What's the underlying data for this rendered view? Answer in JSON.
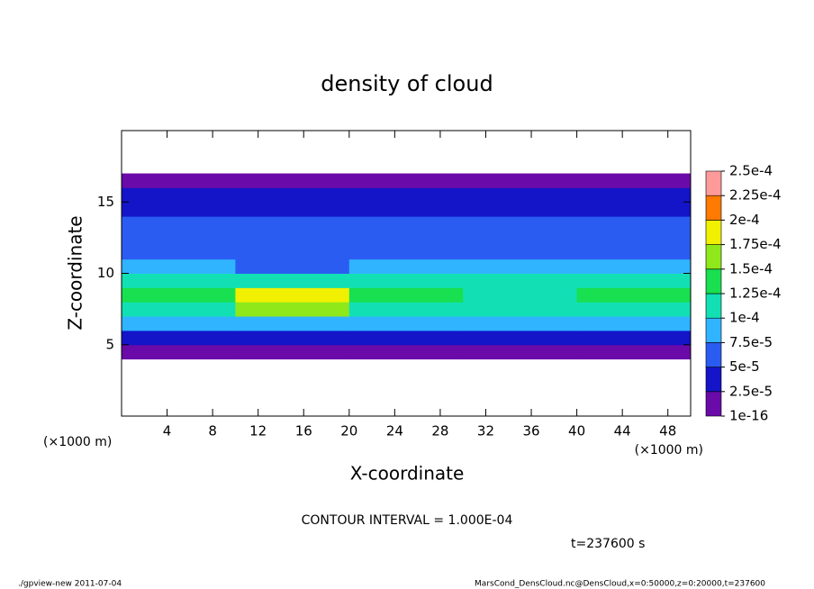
{
  "chart_data": {
    "type": "heatmap",
    "title": "density of cloud",
    "x_label": "X-coordinate",
    "y_label": "Z-coordinate",
    "x_unit": "(×1000 m)",
    "y_unit": "(×1000 m)",
    "contour_note": "CONTOUR INTERVAL = 1.000E-04",
    "time_note": "t=237600 s",
    "footer_left": "./gpview-new   2011-07-04",
    "footer_right": "MarsCond_DensCloud.nc@DensCloud,x=0:50000,z=0:20000,t=237600",
    "xlim": [
      0,
      50
    ],
    "ylim": [
      0,
      20
    ],
    "xticks": [
      4,
      8,
      12,
      16,
      20,
      24,
      28,
      32,
      36,
      40,
      44,
      48
    ],
    "yticks": [
      5,
      10,
      15
    ],
    "x_bins": [
      0,
      10,
      20,
      30,
      40,
      50
    ],
    "y_bins": [
      4,
      5,
      6,
      7,
      8,
      9,
      10,
      11,
      12,
      13,
      14,
      15,
      16,
      17
    ],
    "values": [
      [
        1e-05,
        1e-05,
        1e-05,
        1e-05,
        1e-05
      ],
      [
        4e-05,
        4e-05,
        4e-05,
        4e-05,
        4e-05
      ],
      [
        8e-05,
        9e-05,
        8e-05,
        8e-05,
        8e-05
      ],
      [
        0.00011,
        0.00015,
        0.00011,
        0.00011,
        0.00011
      ],
      [
        0.00013,
        0.00019,
        0.00013,
        0.00012,
        0.00013
      ],
      [
        0.00011,
        0.00012,
        0.00011,
        0.00011,
        0.00011
      ],
      [
        8e-05,
        7e-05,
        8e-05,
        8e-05,
        8e-05
      ],
      [
        6e-05,
        5e-05,
        6e-05,
        6e-05,
        6e-05
      ],
      [
        5.5e-05,
        5e-05,
        5.5e-05,
        5.5e-05,
        5.5e-05
      ],
      [
        5e-05,
        5e-05,
        5e-05,
        5e-05,
        5e-05
      ],
      [
        4.5e-05,
        4.5e-05,
        4.5e-05,
        4.5e-05,
        4.5e-05
      ],
      [
        3e-05,
        3e-05,
        3e-05,
        3e-05,
        3e-05
      ],
      [
        1e-05,
        1e-05,
        1e-05,
        1e-05,
        1e-05
      ]
    ],
    "levels": [
      {
        "value": 1e-16,
        "label": "1e-16"
      },
      {
        "value": 2.5e-05,
        "label": "2.5e-5"
      },
      {
        "value": 5e-05,
        "label": "5e-5"
      },
      {
        "value": 7.5e-05,
        "label": "7.5e-5"
      },
      {
        "value": 0.0001,
        "label": "1e-4"
      },
      {
        "value": 0.000125,
        "label": "1.25e-4"
      },
      {
        "value": 0.00015,
        "label": "1.5e-4"
      },
      {
        "value": 0.000175,
        "label": "1.75e-4"
      },
      {
        "value": 0.0002,
        "label": "2e-4"
      },
      {
        "value": 0.000225,
        "label": "2.25e-4"
      },
      {
        "value": 0.00025,
        "label": "2.5e-4"
      }
    ],
    "colors": [
      "#6a0aa8",
      "#1414c8",
      "#2a5cf2",
      "#30b4ff",
      "#12e0b4",
      "#18e050",
      "#8ee81a",
      "#f0f000",
      "#ff7a00",
      "#ff9a9a"
    ]
  }
}
